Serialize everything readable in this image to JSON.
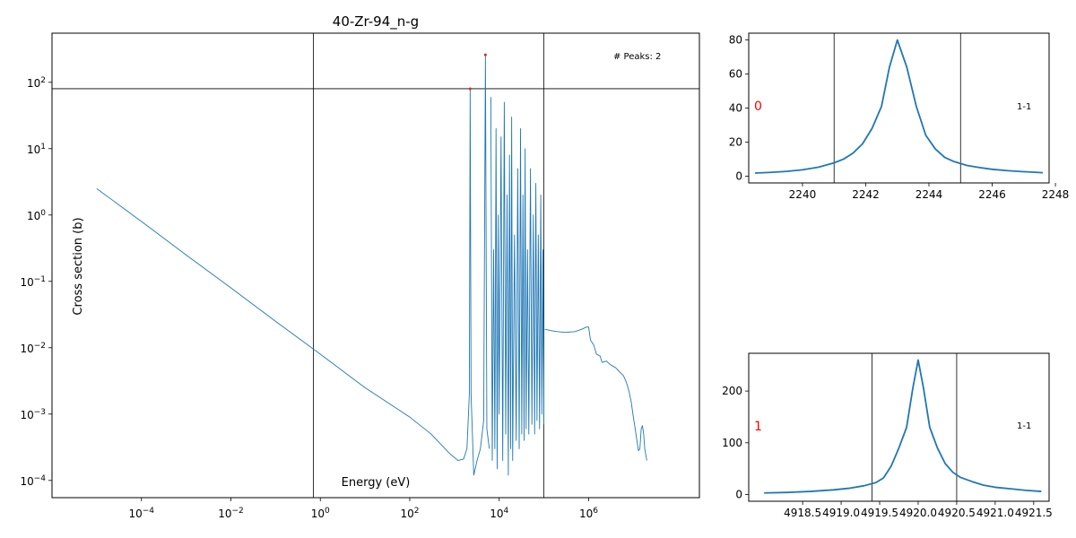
{
  "chart_data": [
    {
      "type": "line",
      "title": "40-Zr-94_n-g",
      "xlabel": "Energy (eV)",
      "ylabel": "Cross section (b)",
      "xscale": "log",
      "yscale": "log",
      "xlim": [
        1e-06,
        300000000.0
      ],
      "ylim": [
        5.5e-05,
        550
      ],
      "annotation": "# Peaks: 2",
      "line_color": "#1f77b4",
      "marker_color": "#d62728",
      "xticks": [
        {
          "value": 0.0001,
          "base": "10",
          "exp": "−4"
        },
        {
          "value": 0.01,
          "base": "10",
          "exp": "−2"
        },
        {
          "value": 1,
          "base": "10",
          "exp": "0"
        },
        {
          "value": 100,
          "base": "10",
          "exp": "2"
        },
        {
          "value": 10000,
          "base": "10",
          "exp": "4"
        },
        {
          "value": 1000000,
          "base": "10",
          "exp": "6"
        }
      ],
      "yticks": [
        {
          "value": 0.0001,
          "base": "10",
          "exp": "−4"
        },
        {
          "value": 0.001,
          "base": "10",
          "exp": "−3"
        },
        {
          "value": 0.01,
          "base": "10",
          "exp": "−2"
        },
        {
          "value": 0.1,
          "base": "10",
          "exp": "−1"
        },
        {
          "value": 1,
          "base": "10",
          "exp": "0"
        },
        {
          "value": 10,
          "base": "10",
          "exp": "1"
        },
        {
          "value": 100,
          "base": "10",
          "exp": "2"
        }
      ],
      "vlines": [
        0.7,
        100000
      ],
      "hlines": [
        80
      ],
      "peaks": [
        {
          "x": 2243,
          "y": 80
        },
        {
          "x": 4920,
          "y": 260
        }
      ],
      "series": [
        {
          "x": [
            1e-05,
            0.0001,
            0.001,
            0.01,
            0.1,
            1,
            10,
            100,
            300,
            800,
            1200,
            1600,
            1900,
            2150,
            2243,
            2350,
            2700,
            3200,
            3800,
            4500,
            4920,
            5300,
            6000
          ],
          "y": [
            2.5,
            0.8,
            0.25,
            0.08,
            0.025,
            0.008,
            0.0025,
            0.0009,
            0.0005,
            0.00025,
            0.0002,
            0.00021,
            0.0003,
            0.002,
            80,
            0.002,
            0.00012,
            0.0002,
            0.0003,
            0.0008,
            260,
            0.0006,
            0.0003
          ]
        },
        {
          "x": [
            6500,
            7000,
            7500,
            8000,
            8500,
            9000,
            9500,
            10000,
            11000,
            12000,
            13000,
            14000,
            15000,
            16000,
            17000,
            18000,
            19000,
            20000,
            22000,
            24000,
            26000,
            28000,
            30000,
            32000,
            34000,
            36000,
            38000,
            40000,
            43000,
            46000,
            50000,
            54000,
            58000,
            62000,
            66000,
            70000,
            75000,
            80000,
            85000,
            90000,
            95000,
            100000
          ],
          "y": [
            60,
            0.0002,
            0.3,
            0.0003,
            20,
            0.00015,
            1,
            0.001,
            15,
            0.0002,
            50,
            0.0005,
            2,
            0.00012,
            8,
            0.0003,
            30,
            0.0002,
            0.5,
            0.0004,
            5,
            0.0003,
            20,
            0.0005,
            2,
            0.0004,
            10,
            0.0006,
            0.3,
            0.0005,
            5,
            0.0007,
            1,
            0.0005,
            3,
            0.0008,
            0.5,
            0.0006,
            2,
            0.001,
            0.3,
            0.0007
          ]
        },
        {
          "x": [
            105000,
            150000,
            200000,
            300000,
            500000,
            700000,
            900000,
            1000000,
            1100000,
            1300000,
            1500000,
            1800000,
            2000000,
            2500000,
            3000000,
            4000000,
            5000000,
            6000000,
            7000000,
            8000000,
            9000000,
            10000000,
            11000000,
            12000000,
            13000000,
            14000000,
            15000000,
            16000000,
            17000000,
            18000000,
            20000000
          ],
          "y": [
            0.019,
            0.018,
            0.0175,
            0.017,
            0.0175,
            0.019,
            0.0205,
            0.0205,
            0.013,
            0.011,
            0.008,
            0.0075,
            0.006,
            0.0063,
            0.0056,
            0.005,
            0.0043,
            0.0038,
            0.003,
            0.0022,
            0.0015,
            0.0009,
            0.0006,
            0.0004,
            0.00028,
            0.0003,
            0.0006,
            0.00067,
            0.0005,
            0.0003,
            0.0002
          ]
        }
      ]
    },
    {
      "type": "line",
      "label": "0",
      "annotation": "1-1",
      "xlim": [
        2238.3,
        2247.8
      ],
      "ylim": [
        -4,
        84
      ],
      "xticks": [
        {
          "value": 2240,
          "label": "2240"
        },
        {
          "value": 2242,
          "label": "2242"
        },
        {
          "value": 2244,
          "label": "2244"
        },
        {
          "value": 2246,
          "label": "2246"
        },
        {
          "value": 2248,
          "label": "2248"
        }
      ],
      "yticks": [
        {
          "value": 0,
          "label": "0"
        },
        {
          "value": 20,
          "label": "20"
        },
        {
          "value": 40,
          "label": "40"
        },
        {
          "value": 60,
          "label": "60"
        },
        {
          "value": 80,
          "label": "80"
        }
      ],
      "vlines": [
        2241,
        2245
      ],
      "series": [
        {
          "x": [
            2238.5,
            2239.0,
            2239.5,
            2240.0,
            2240.5,
            2241.0,
            2241.3,
            2241.6,
            2241.9,
            2242.2,
            2242.5,
            2242.75,
            2243.0,
            2243.3,
            2243.6,
            2243.9,
            2244.2,
            2244.5,
            2244.8,
            2245.2,
            2245.6,
            2246.0,
            2246.5,
            2247.0,
            2247.6
          ],
          "y": [
            1.8,
            2.2,
            2.8,
            3.7,
            5.2,
            7.8,
            10,
            13.5,
            19,
            28,
            41,
            64,
            80,
            64,
            41,
            24,
            16,
            11,
            8.5,
            6.3,
            5,
            4,
            3.2,
            2.6,
            2
          ]
        }
      ]
    },
    {
      "type": "line",
      "label": "1",
      "annotation": "1-1",
      "xlim": [
        4917.8,
        4921.7
      ],
      "ylim": [
        -13,
        273
      ],
      "xticks": [
        {
          "value": 4918.5,
          "label": "4918.5"
        },
        {
          "value": 4919.0,
          "label": "4919.0"
        },
        {
          "value": 4919.5,
          "label": "4919.5"
        },
        {
          "value": 4920.0,
          "label": "4920.0"
        },
        {
          "value": 4920.5,
          "label": "4920.5"
        },
        {
          "value": 4921.0,
          "label": "4921.0"
        },
        {
          "value": 4921.5,
          "label": "4921.5"
        }
      ],
      "yticks": [
        {
          "value": 0,
          "label": "0"
        },
        {
          "value": 100,
          "label": "100"
        },
        {
          "value": 200,
          "label": "200"
        }
      ],
      "vlines": [
        4919.4,
        4920.5
      ],
      "series": [
        {
          "x": [
            4918.0,
            4918.3,
            4918.6,
            4918.9,
            4919.1,
            4919.3,
            4919.45,
            4919.55,
            4919.65,
            4919.75,
            4919.85,
            4919.93,
            4920.0,
            4920.07,
            4920.15,
            4920.25,
            4920.35,
            4920.45,
            4920.55,
            4920.7,
            4920.85,
            4921.0,
            4921.2,
            4921.4,
            4921.6
          ],
          "y": [
            3,
            4,
            6,
            9,
            12,
            17,
            23,
            32,
            55,
            90,
            130,
            205,
            260,
            205,
            130,
            90,
            60,
            43,
            33,
            25,
            18,
            14,
            11,
            8,
            6
          ]
        }
      ]
    }
  ]
}
